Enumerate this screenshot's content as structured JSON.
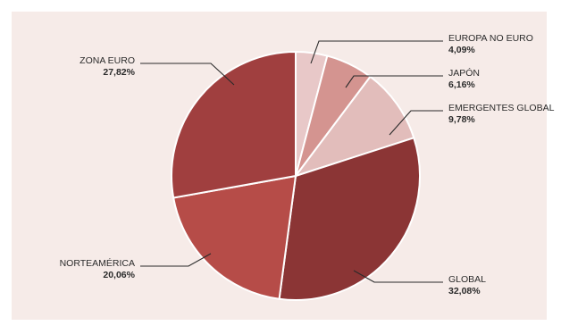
{
  "chart_data": {
    "type": "pie",
    "title": "",
    "slices": [
      {
        "label": "EUROPA NO EURO",
        "value_label": "4,09%",
        "value": 4.09,
        "color": "#e8c8c8"
      },
      {
        "label": "JAPÓN",
        "value_label": "6,16%",
        "value": 6.16,
        "color": "#d49490"
      },
      {
        "label": "EMERGENTES GLOBAL",
        "value_label": "9,78%",
        "value": 9.78,
        "color": "#e2bdbb"
      },
      {
        "label": "GLOBAL",
        "value_label": "32,08%",
        "value": 32.08,
        "color": "#8b3535"
      },
      {
        "label": "NORTEAMÉRICA",
        "value_label": "20,06%",
        "value": 20.06,
        "color": "#b64c48"
      },
      {
        "label": "ZONA EURO",
        "value_label": "27,82%",
        "value": 27.82,
        "color": "#a03f3f"
      }
    ],
    "legend": "none",
    "start_angle": "top",
    "direction": "clockwise"
  },
  "colors": {
    "background": "#f6ebe8",
    "leader_lines": "#2a2a2a"
  }
}
